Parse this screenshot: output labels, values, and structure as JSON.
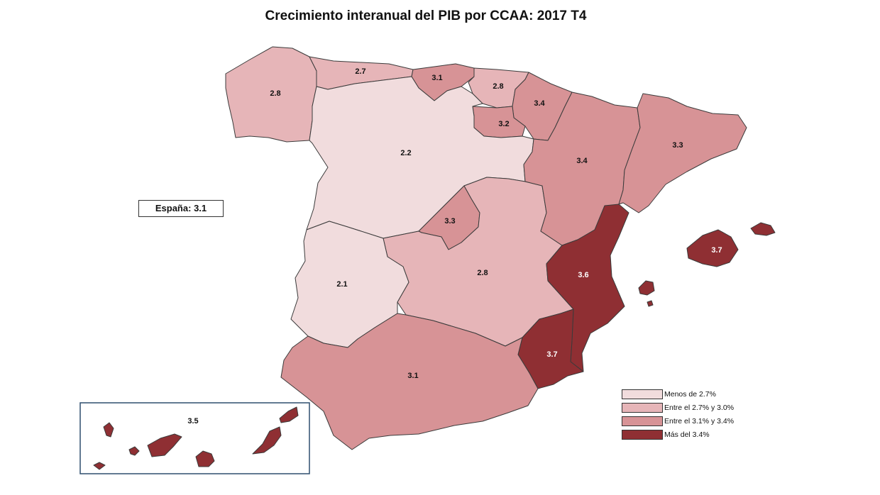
{
  "title": "Crecimiento interanual del PIB por CCAA: 2017 T4",
  "national": {
    "label": "España:",
    "value": "3.1"
  },
  "colors": {
    "below_2_7": "#f1dcdd",
    "between_2_7_3_0": "#e6b5b8",
    "between_3_1_3_4": "#d79396",
    "above_3_4": "#8f2f33",
    "border": "#3b3b3b"
  },
  "legend": [
    {
      "label": "Menos de 2.7%",
      "color": "#f1dcdd"
    },
    {
      "label": "Entre el 2.7% y 3.0%",
      "color": "#e6b5b8"
    },
    {
      "label": "Entre el 3.1% y 3.4%",
      "color": "#d79396"
    },
    {
      "label": "Más del 3.4%",
      "color": "#8f2f33"
    }
  ],
  "regions": {
    "galicia": "2.8",
    "asturias": "2.7",
    "cantabria": "3.1",
    "pais_vasco": "2.8",
    "navarra": "3.4",
    "la_rioja": "3.2",
    "aragon": "3.4",
    "cataluna": "3.3",
    "castilla_y_leon": "2.2",
    "madrid": "3.3",
    "castilla_la_mancha": "2.8",
    "extremadura": "2.1",
    "comunidad_valenciana": "3.6",
    "baleares": "3.7",
    "murcia": "3.7",
    "andalucia": "3.1",
    "canarias": "3.5"
  }
}
